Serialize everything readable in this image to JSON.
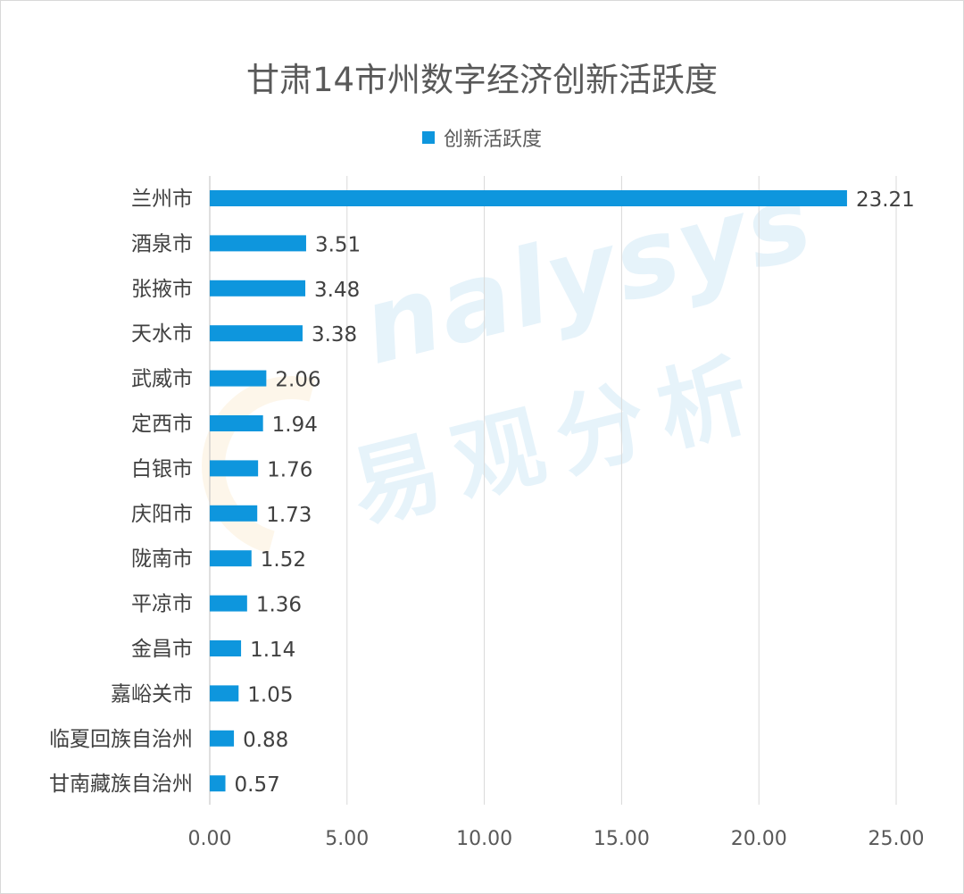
{
  "chart_data": {
    "type": "bar",
    "orientation": "horizontal",
    "title": "甘肃14市州数字经济创新活跃度",
    "categories": [
      "兰州市",
      "酒泉市",
      "张掖市",
      "天水市",
      "武威市",
      "定西市",
      "白银市",
      "庆阳市",
      "陇南市",
      "平凉市",
      "金昌市",
      "嘉峪关市",
      "临夏回族自治州",
      "甘南藏族自治州"
    ],
    "series": [
      {
        "name": "创新活跃度",
        "color": "#0e96dd",
        "values": [
          23.21,
          3.51,
          3.48,
          3.38,
          2.06,
          1.94,
          1.76,
          1.73,
          1.52,
          1.36,
          1.14,
          1.05,
          0.88,
          0.57
        ],
        "value_labels": [
          "23.21",
          "3.51",
          "3.48",
          "3.38",
          "2.06",
          "1.94",
          "1.76",
          "1.73",
          "1.52",
          "1.36",
          "1.14",
          "1.05",
          "0.88",
          "0.57"
        ]
      }
    ],
    "x_ticks": [
      "0.00",
      "5.00",
      "10.00",
      "15.00",
      "20.00",
      "25.00"
    ],
    "xlim": [
      0,
      25
    ],
    "grid": "vertical",
    "legend_position": "top"
  },
  "watermark": {
    "text_en": "nalysys",
    "text_cn": "易观分析"
  }
}
